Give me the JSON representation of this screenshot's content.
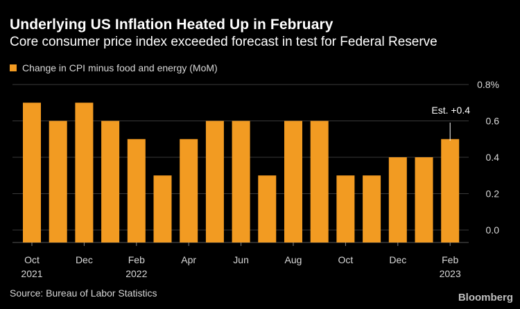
{
  "header": {
    "title": "Underlying US Inflation Heated Up in February",
    "subtitle": "Core consumer price index exceeded forecast in test for Federal Reserve"
  },
  "legend": {
    "label": "Change in CPI minus food and energy (MoM)"
  },
  "footer": {
    "source": "Source: Bureau of Labor Statistics",
    "brand": "Bloomberg"
  },
  "colors": {
    "bar": "#f29b22",
    "background": "#000000",
    "grid": "#3a3a3a",
    "tick_text": "#d9d9d9"
  },
  "chart_data": {
    "type": "bar",
    "x": [
      "Oct 2021",
      "Nov 2021",
      "Dec 2021",
      "Jan 2022",
      "Feb 2022",
      "Mar 2022",
      "Apr 2022",
      "May 2022",
      "Jun 2022",
      "Jul 2022",
      "Aug 2022",
      "Sep 2022",
      "Oct 2022",
      "Nov 2022",
      "Dec 2022",
      "Jan 2023",
      "Feb 2023"
    ],
    "values": [
      0.7,
      0.6,
      0.7,
      0.6,
      0.5,
      0.3,
      0.5,
      0.6,
      0.6,
      0.3,
      0.6,
      0.6,
      0.3,
      0.3,
      0.4,
      0.4,
      0.5
    ],
    "x_tick_labels": [
      {
        "index": 0,
        "line1": "Oct",
        "line2": "2021"
      },
      {
        "index": 2,
        "line1": "Dec",
        "line2": ""
      },
      {
        "index": 4,
        "line1": "Feb",
        "line2": "2022"
      },
      {
        "index": 6,
        "line1": "Apr",
        "line2": ""
      },
      {
        "index": 8,
        "line1": "Jun",
        "line2": ""
      },
      {
        "index": 10,
        "line1": "Aug",
        "line2": ""
      },
      {
        "index": 12,
        "line1": "Oct",
        "line2": ""
      },
      {
        "index": 14,
        "line1": "Dec",
        "line2": ""
      },
      {
        "index": 16,
        "line1": "Feb",
        "line2": "2023"
      }
    ],
    "y_ticks": [
      {
        "value": 0.0,
        "label": "0.0"
      },
      {
        "value": 0.2,
        "label": "0.2"
      },
      {
        "value": 0.4,
        "label": "0.4"
      },
      {
        "value": 0.6,
        "label": "0.6"
      },
      {
        "value": 0.8,
        "label": "0.8%"
      }
    ],
    "ylim": [
      0,
      0.8
    ],
    "y_axis_side": "right",
    "grid": true,
    "annotation": {
      "index": 16,
      "text": "Est. +0.4"
    }
  }
}
